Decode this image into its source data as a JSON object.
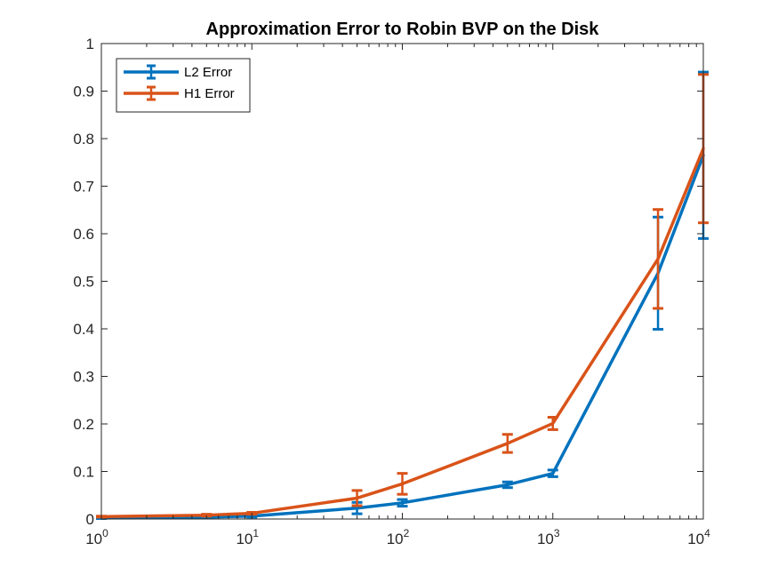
{
  "chart_data": {
    "type": "line",
    "title": "Approximation Error to Robin BVP on the Disk",
    "xlabel": "",
    "ylabel": "",
    "x_scale": "log",
    "xlim": [
      1,
      10000
    ],
    "ylim": [
      0,
      1
    ],
    "grid": false,
    "legend_position": "top-left",
    "x_ticks": [
      {
        "base": "10",
        "exp": "0",
        "value": 1
      },
      {
        "base": "10",
        "exp": "1",
        "value": 10
      },
      {
        "base": "10",
        "exp": "2",
        "value": 100
      },
      {
        "base": "10",
        "exp": "3",
        "value": 1000
      },
      {
        "base": "10",
        "exp": "4",
        "value": 10000
      }
    ],
    "y_ticks": [
      "0",
      "0.1",
      "0.2",
      "0.3",
      "0.4",
      "0.5",
      "0.6",
      "0.7",
      "0.8",
      "0.9",
      "1"
    ],
    "x": [
      1,
      5,
      10,
      50,
      100,
      500,
      1000,
      5000,
      10000
    ],
    "series": [
      {
        "name": "L2 Error",
        "color": "#0072BD",
        "values": [
          0.002,
          0.004,
          0.006,
          0.023,
          0.034,
          0.072,
          0.096,
          0.517,
          0.765
        ],
        "errors": [
          0.001,
          0.002,
          0.002,
          0.012,
          0.007,
          0.006,
          0.007,
          0.118,
          0.175
        ]
      },
      {
        "name": "H1 Error",
        "color": "#D95319",
        "values": [
          0.005,
          0.008,
          0.012,
          0.044,
          0.074,
          0.159,
          0.201,
          0.547,
          0.779
        ],
        "errors": [
          0.001,
          0.002,
          0.002,
          0.016,
          0.022,
          0.019,
          0.013,
          0.104,
          0.156
        ]
      }
    ]
  }
}
